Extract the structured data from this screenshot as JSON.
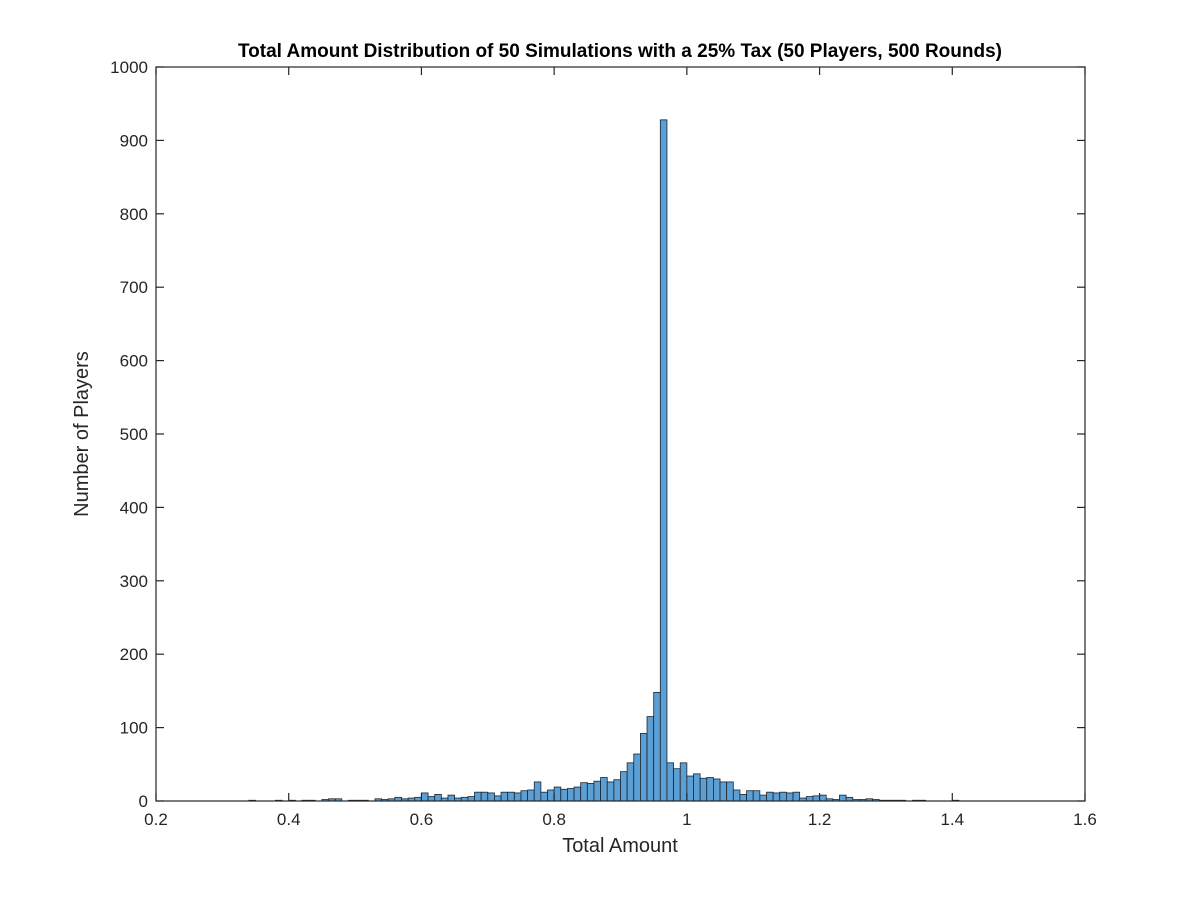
{
  "chart_data": {
    "type": "bar",
    "title": "Total Amount Distribution of 50 Simulations with a 25% Tax (50 Players, 500 Rounds)",
    "xlabel": "Total Amount",
    "ylabel": "Number of Players",
    "xlim": [
      0.2,
      1.6
    ],
    "ylim": [
      0,
      1000
    ],
    "xticks": [
      "0.2",
      "0.4",
      "0.6",
      "0.8",
      "1",
      "1.2",
      "1.4",
      "1.6"
    ],
    "yticks": [
      "0",
      "100",
      "200",
      "300",
      "400",
      "500",
      "600",
      "700",
      "800",
      "900",
      "1000"
    ],
    "bin_width": 0.01,
    "bin_starts": [
      0.34,
      0.35,
      0.36,
      0.37,
      0.38,
      0.39,
      0.4,
      0.41,
      0.42,
      0.43,
      0.44,
      0.45,
      0.46,
      0.47,
      0.48,
      0.49,
      0.5,
      0.51,
      0.52,
      0.53,
      0.54,
      0.55,
      0.56,
      0.57,
      0.58,
      0.59,
      0.6,
      0.61,
      0.62,
      0.63,
      0.64,
      0.65,
      0.66,
      0.67,
      0.68,
      0.69,
      0.7,
      0.71,
      0.72,
      0.73,
      0.74,
      0.75,
      0.76,
      0.77,
      0.78,
      0.79,
      0.8,
      0.81,
      0.82,
      0.83,
      0.84,
      0.85,
      0.86,
      0.87,
      0.88,
      0.89,
      0.9,
      0.91,
      0.92,
      0.93,
      0.94,
      0.95,
      0.96,
      0.97,
      0.98,
      0.99,
      1.0,
      1.01,
      1.02,
      1.03,
      1.04,
      1.05,
      1.06,
      1.07,
      1.08,
      1.09,
      1.1,
      1.11,
      1.12,
      1.13,
      1.14,
      1.15,
      1.16,
      1.17,
      1.18,
      1.19,
      1.2,
      1.21,
      1.22,
      1.23,
      1.24,
      1.25,
      1.26,
      1.27,
      1.28,
      1.29,
      1.3,
      1.31,
      1.32,
      1.33,
      1.34,
      1.35,
      1.36,
      1.37,
      1.38,
      1.39,
      1.4,
      1.41,
      1.42,
      1.43,
      1.44
    ],
    "values": [
      1,
      0,
      0,
      0,
      1,
      0,
      1,
      0,
      1,
      1,
      0,
      2,
      3,
      3,
      0,
      1,
      1,
      1,
      0,
      3,
      2,
      3,
      5,
      3,
      4,
      5,
      11,
      6,
      9,
      4,
      8,
      4,
      5,
      6,
      12,
      12,
      11,
      7,
      12,
      12,
      11,
      14,
      15,
      26,
      12,
      15,
      19,
      16,
      17,
      19,
      25,
      24,
      27,
      32,
      26,
      29,
      40,
      52,
      64,
      92,
      115,
      148,
      928,
      52,
      44,
      52,
      34,
      37,
      31,
      32,
      30,
      26,
      26,
      15,
      9,
      14,
      14,
      8,
      12,
      11,
      12,
      11,
      12,
      4,
      6,
      7,
      8,
      3,
      2,
      8,
      5,
      2,
      2,
      3,
      2,
      1,
      1,
      1,
      1,
      0,
      1,
      1,
      0,
      0,
      0,
      0,
      1,
      0,
      0,
      0,
      0
    ],
    "bar_color": "#5b9fd5",
    "edge_color": "#1b2530",
    "grid": false,
    "legend": "none"
  }
}
